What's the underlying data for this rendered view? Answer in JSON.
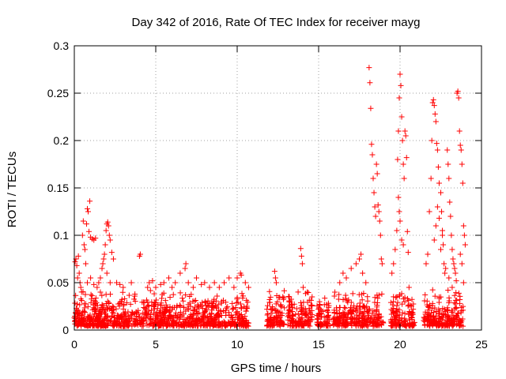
{
  "chart_data": {
    "type": "scatter",
    "title": "Day 342 of 2016, Rate Of TEC Index for receiver mayg",
    "xlabel": "GPS time / hours",
    "ylabel": "ROTI / TECUs",
    "xlim": [
      0,
      25
    ],
    "ylim": [
      0,
      0.3
    ],
    "x_ticks": [
      "0",
      "5",
      "10",
      "15",
      "20",
      "25"
    ],
    "y_ticks": [
      "0",
      "0.05",
      "0.1",
      "0.15",
      "0.2",
      "0.25",
      "0.3"
    ],
    "grid": true,
    "legend": "none",
    "marker": "plus",
    "color": "#ff0000",
    "series": [
      {
        "points": [
          [
            0.05,
            0.072
          ],
          [
            0.1,
            0.075
          ],
          [
            0.15,
            0.068
          ],
          [
            0.2,
            0.055
          ],
          [
            0.25,
            0.078
          ],
          [
            0.3,
            0.06
          ],
          [
            0.35,
            0.05
          ],
          [
            0.4,
            0.045
          ],
          [
            0.5,
            0.1
          ],
          [
            0.55,
            0.115
          ],
          [
            0.6,
            0.09
          ],
          [
            0.65,
            0.085
          ],
          [
            0.7,
            0.07
          ],
          [
            0.75,
            0.112
          ],
          [
            0.8,
            0.128
          ],
          [
            0.85,
            0.125
          ],
          [
            0.9,
            0.104
          ],
          [
            0.95,
            0.136
          ],
          [
            1.0,
            0.098
          ],
          [
            1.1,
            0.096
          ],
          [
            1.2,
            0.095
          ],
          [
            1.3,
            0.097
          ],
          [
            1.5,
            0.05
          ],
          [
            1.6,
            0.055
          ],
          [
            1.7,
            0.065
          ],
          [
            1.75,
            0.07
          ],
          [
            1.8,
            0.075
          ],
          [
            1.85,
            0.08
          ],
          [
            1.9,
            0.09
          ],
          [
            1.95,
            0.105
          ],
          [
            2.0,
            0.112
          ],
          [
            2.05,
            0.114
          ],
          [
            2.1,
            0.11
          ],
          [
            2.15,
            0.1
          ],
          [
            2.2,
            0.095
          ],
          [
            2.3,
            0.082
          ],
          [
            2.4,
            0.075
          ],
          [
            2.0,
            0.06
          ],
          [
            2.2,
            0.05
          ],
          [
            1.4,
            0.045
          ],
          [
            1.0,
            0.055
          ],
          [
            1.2,
            0.048
          ],
          [
            0.8,
            0.05
          ],
          [
            1.6,
            0.04
          ],
          [
            2.6,
            0.05
          ],
          [
            2.8,
            0.048
          ],
          [
            3.0,
            0.045
          ],
          [
            3.5,
            0.05
          ],
          [
            4.0,
            0.078
          ],
          [
            4.05,
            0.08
          ],
          [
            4.5,
            0.045
          ],
          [
            4.6,
            0.05
          ],
          [
            4.8,
            0.052
          ],
          [
            5.0,
            0.045
          ],
          [
            5.3,
            0.048
          ],
          [
            5.5,
            0.05
          ],
          [
            5.8,
            0.055
          ],
          [
            6.0,
            0.045
          ],
          [
            6.2,
            0.05
          ],
          [
            6.5,
            0.06
          ],
          [
            6.8,
            0.065
          ],
          [
            6.85,
            0.07
          ],
          [
            7.0,
            0.05
          ],
          [
            7.3,
            0.045
          ],
          [
            7.5,
            0.055
          ],
          [
            7.8,
            0.048
          ],
          [
            8.0,
            0.05
          ],
          [
            8.3,
            0.045
          ],
          [
            8.6,
            0.05
          ],
          [
            8.9,
            0.045
          ],
          [
            9.2,
            0.05
          ],
          [
            9.5,
            0.055
          ],
          [
            9.8,
            0.045
          ],
          [
            10.0,
            0.055
          ],
          [
            10.2,
            0.06
          ],
          [
            10.25,
            0.058
          ],
          [
            10.5,
            0.05
          ],
          [
            10.7,
            0.045
          ],
          [
            12.3,
            0.062
          ],
          [
            12.35,
            0.055
          ],
          [
            12.4,
            0.05
          ],
          [
            12.8,
            0.035
          ],
          [
            13.2,
            0.035
          ],
          [
            13.9,
            0.086
          ],
          [
            13.95,
            0.078
          ],
          [
            14.0,
            0.07
          ],
          [
            14.05,
            0.045
          ],
          [
            14.3,
            0.04
          ],
          [
            14.6,
            0.035
          ],
          [
            16.0,
            0.04
          ],
          [
            16.3,
            0.05
          ],
          [
            16.5,
            0.06
          ],
          [
            16.7,
            0.055
          ],
          [
            17.0,
            0.065
          ],
          [
            17.3,
            0.07
          ],
          [
            17.5,
            0.075
          ],
          [
            17.6,
            0.08
          ],
          [
            17.7,
            0.06
          ],
          [
            17.9,
            0.05
          ],
          [
            18.1,
            0.277
          ],
          [
            18.15,
            0.261
          ],
          [
            18.2,
            0.234
          ],
          [
            18.25,
            0.196
          ],
          [
            18.3,
            0.185
          ],
          [
            18.35,
            0.16
          ],
          [
            18.4,
            0.145
          ],
          [
            18.45,
            0.13
          ],
          [
            18.5,
            0.12
          ],
          [
            18.55,
            0.175
          ],
          [
            18.6,
            0.165
          ],
          [
            18.65,
            0.132
          ],
          [
            18.7,
            0.125
          ],
          [
            18.75,
            0.115
          ],
          [
            18.8,
            0.1
          ],
          [
            18.85,
            0.075
          ],
          [
            18.9,
            0.07
          ],
          [
            19.5,
            0.06
          ],
          [
            19.6,
            0.07
          ],
          [
            19.7,
            0.085
          ],
          [
            19.8,
            0.035
          ],
          [
            19.85,
            0.18
          ],
          [
            19.9,
            0.21
          ],
          [
            19.95,
            0.245
          ],
          [
            20.0,
            0.27
          ],
          [
            20.05,
            0.258
          ],
          [
            20.1,
            0.225
          ],
          [
            20.15,
            0.2
          ],
          [
            20.2,
            0.175
          ],
          [
            20.25,
            0.16
          ],
          [
            20.3,
            0.21
          ],
          [
            20.35,
            0.205
          ],
          [
            20.4,
            0.182
          ],
          [
            20.45,
            0.104
          ],
          [
            20.5,
            0.082
          ],
          [
            20.55,
            0.045
          ],
          [
            19.9,
            0.14
          ],
          [
            19.95,
            0.125
          ],
          [
            20.0,
            0.115
          ],
          [
            19.8,
            0.105
          ],
          [
            20.1,
            0.095
          ],
          [
            20.2,
            0.09
          ],
          [
            21.6,
            0.07
          ],
          [
            21.7,
            0.08
          ],
          [
            21.8,
            0.125
          ],
          [
            21.9,
            0.16
          ],
          [
            21.95,
            0.2
          ],
          [
            22.0,
            0.24
          ],
          [
            22.05,
            0.243
          ],
          [
            22.1,
            0.237
          ],
          [
            22.15,
            0.228
          ],
          [
            22.2,
            0.22
          ],
          [
            22.25,
            0.197
          ],
          [
            22.3,
            0.19
          ],
          [
            22.35,
            0.172
          ],
          [
            22.4,
            0.155
          ],
          [
            22.5,
            0.145
          ],
          [
            22.55,
            0.125
          ],
          [
            22.6,
            0.105
          ],
          [
            22.65,
            0.09
          ],
          [
            22.7,
            0.07
          ],
          [
            22.75,
            0.06
          ],
          [
            22.8,
            0.065
          ],
          [
            22.9,
            0.19
          ],
          [
            22.95,
            0.175
          ],
          [
            23.0,
            0.16
          ],
          [
            23.05,
            0.135
          ],
          [
            23.1,
            0.12
          ],
          [
            23.15,
            0.1
          ],
          [
            23.2,
            0.085
          ],
          [
            23.25,
            0.075
          ],
          [
            23.3,
            0.07
          ],
          [
            23.35,
            0.065
          ],
          [
            23.4,
            0.06
          ],
          [
            23.45,
            0.052
          ],
          [
            23.5,
            0.25
          ],
          [
            23.55,
            0.252
          ],
          [
            23.6,
            0.245
          ],
          [
            23.65,
            0.21
          ],
          [
            23.7,
            0.195
          ],
          [
            23.75,
            0.19
          ],
          [
            23.8,
            0.175
          ],
          [
            23.85,
            0.155
          ],
          [
            23.9,
            0.11
          ],
          [
            23.95,
            0.1
          ],
          [
            24.0,
            0.09
          ],
          [
            23.7,
            0.08
          ],
          [
            23.8,
            0.07
          ],
          [
            23.9,
            0.05
          ],
          [
            22.3,
            0.13
          ],
          [
            22.4,
            0.118
          ],
          [
            22.2,
            0.11
          ],
          [
            22.1,
            0.095
          ],
          [
            22.6,
            0.1
          ],
          [
            22.5,
            0.085
          ],
          [
            23.2,
            0.045
          ],
          [
            23.0,
            0.055
          ]
        ]
      }
    ]
  }
}
